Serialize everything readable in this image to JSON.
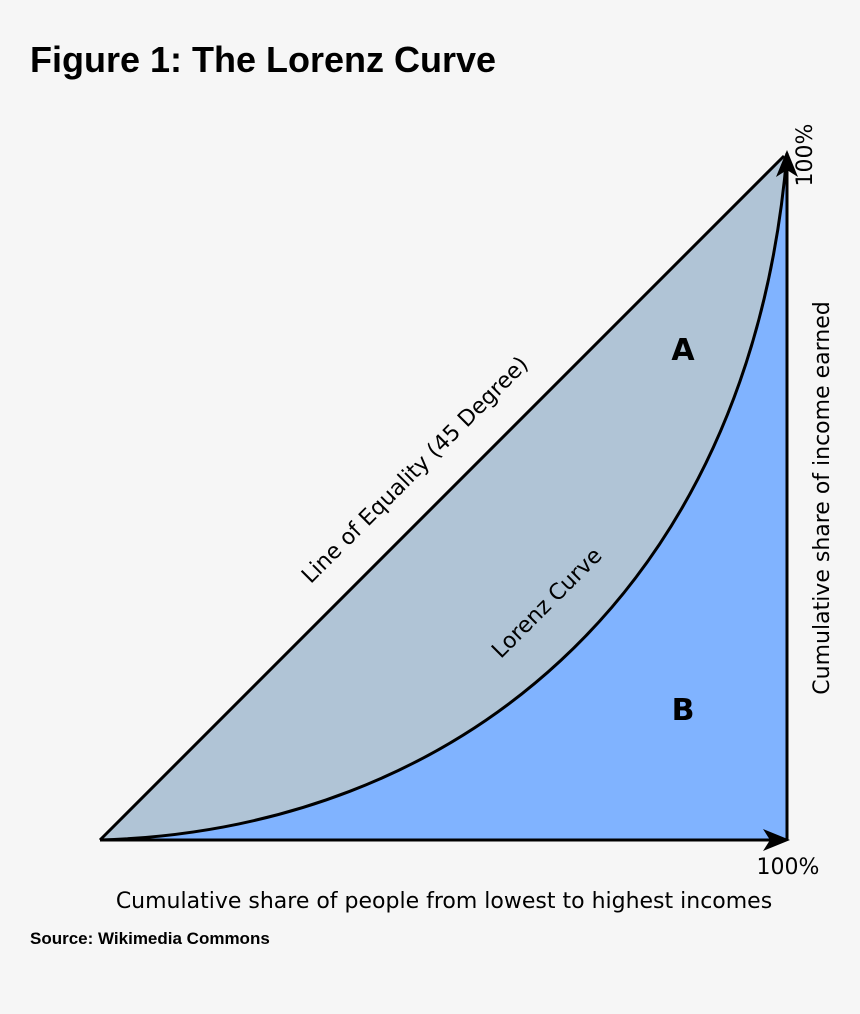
{
  "header": {
    "title": "Figure 1: The Lorenz Curve"
  },
  "diagram": {
    "line_label": "Line of Equality (45 Degree)",
    "curve_label": "Lorenz Curve",
    "area_a": "A",
    "area_b": "B",
    "x_end_label": "100%",
    "y_end_label": "100%",
    "x_axis_label": "Cumulative share of people from lowest to highest incomes",
    "y_axis_label": "Cumulative share of income earned"
  },
  "footer": {
    "source": "Source: Wikimedia Commons"
  }
}
